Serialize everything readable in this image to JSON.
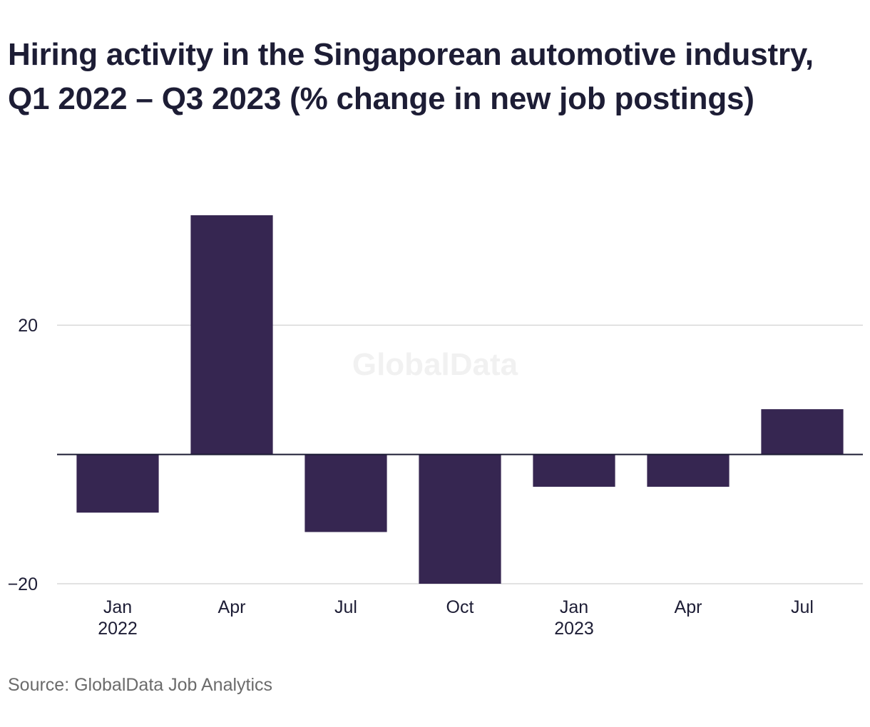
{
  "title": "Hiring activity in the Singaporean automotive industry, Q1 2022 – Q3 2023 (% change in new job postings)",
  "source": "Source: GlobalData Job Analytics",
  "watermark": "GlobalData",
  "colors": {
    "bar": "#362651",
    "grid": "#d9d9d9",
    "zero_line": "#1d1d35",
    "text": "#1d1d35",
    "source_text": "#6b6b6b",
    "watermark": "#f1f1f1"
  },
  "chart_data": {
    "type": "bar",
    "title": "Hiring activity in the Singaporean automotive industry, Q1 2022 – Q3 2023 (% change in new job postings)",
    "xlabel": "",
    "ylabel": "",
    "categories": [
      [
        "Jan",
        "2022"
      ],
      [
        "Apr",
        ""
      ],
      [
        "Jul",
        ""
      ],
      [
        "Oct",
        ""
      ],
      [
        "Jan",
        "2023"
      ],
      [
        "Apr",
        ""
      ],
      [
        "Jul",
        ""
      ]
    ],
    "values": [
      -9,
      37,
      -12,
      -20,
      -5,
      -5,
      7
    ],
    "ylim": [
      -20,
      37
    ],
    "yticks": [
      {
        "value": 20,
        "label": "20"
      },
      {
        "value": -20,
        "label": "−20"
      }
    ],
    "grid": true,
    "legend": "none"
  }
}
